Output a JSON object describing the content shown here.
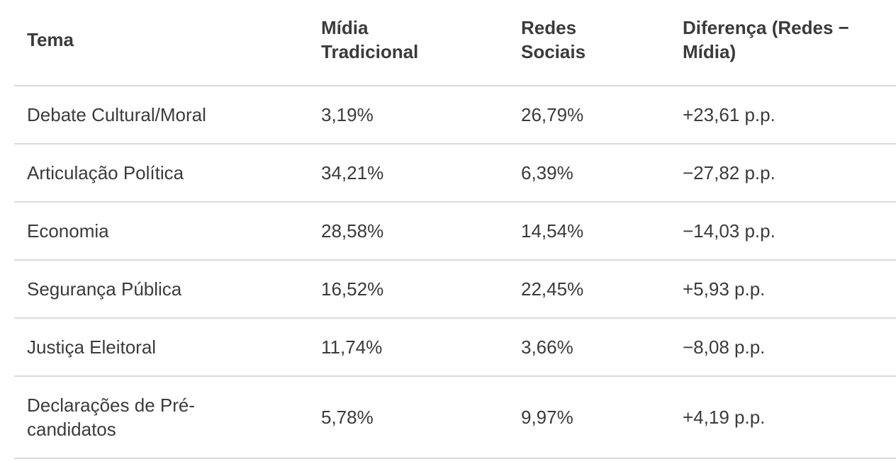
{
  "chart_data": {
    "type": "table",
    "columns": [
      "Tema",
      "Mídia\nTradicional",
      "Redes\nSociais",
      "Diferença (Redes −\nMídia)"
    ],
    "rows": [
      [
        "Debate Cultural/Moral",
        "3,19%",
        "26,79%",
        "+23,61 p.p."
      ],
      [
        "Articulação Política",
        "34,21%",
        "6,39%",
        "−27,82 p.p."
      ],
      [
        "Economia",
        "28,58%",
        "14,54%",
        "−14,03 p.p."
      ],
      [
        "Segurança Pública",
        "16,52%",
        "22,45%",
        "+5,93 p.p."
      ],
      [
        "Justiça Eleitoral",
        "11,74%",
        "3,66%",
        "−8,08 p.p."
      ],
      [
        "Declarações de Pré-\ncandidatos",
        "5,78%",
        "9,97%",
        "+4,19 p.p."
      ]
    ]
  },
  "colors": {
    "text": "#3b3b3b",
    "divider": "#dadada",
    "background": "#ffffff"
  }
}
